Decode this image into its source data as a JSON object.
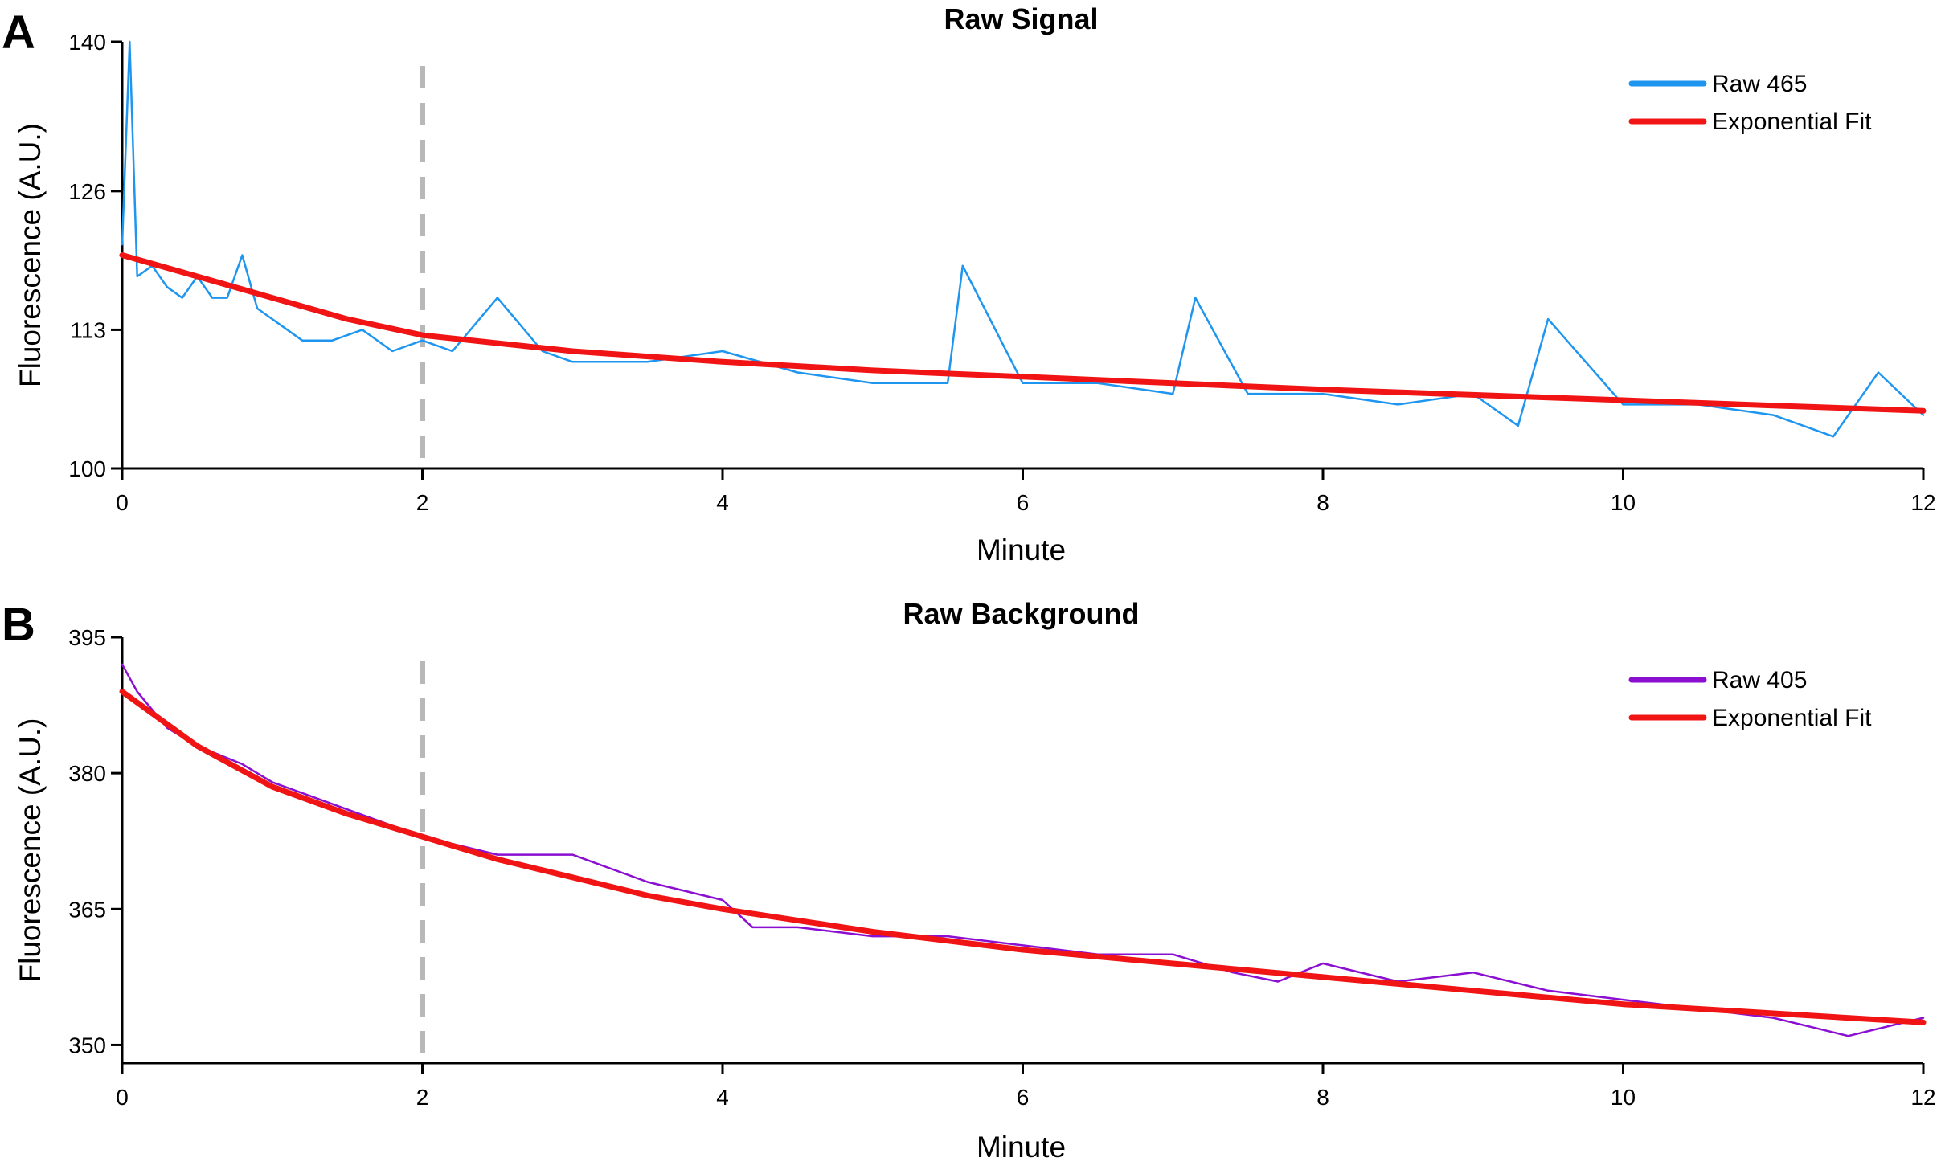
{
  "chart_data": [
    {
      "type": "line",
      "panel": "A",
      "title": "Raw Signal",
      "xlabel": "Minute",
      "ylabel": "Fluorescence (A.U.)",
      "xlim": [
        0,
        12
      ],
      "ylim": [
        100,
        140
      ],
      "xticks": [
        "0",
        "2",
        "4",
        "6",
        "8",
        "10",
        "12"
      ],
      "yticks": [
        "100",
        "113",
        "126",
        "140"
      ],
      "marker_x": 2,
      "legend_position": "top-right",
      "series": [
        {
          "name": "Raw 465",
          "color": "#1e96f0",
          "x": [
            0,
            0.05,
            0.1,
            0.2,
            0.3,
            0.4,
            0.5,
            0.6,
            0.7,
            0.8,
            0.9,
            1.0,
            1.2,
            1.4,
            1.6,
            1.8,
            2.0,
            2.2,
            2.5,
            2.8,
            3.0,
            3.5,
            4.0,
            4.5,
            5.0,
            5.5,
            5.6,
            6.0,
            6.5,
            7.0,
            7.15,
            7.5,
            8.0,
            8.5,
            9.0,
            9.3,
            9.5,
            10.0,
            10.5,
            11.0,
            11.4,
            11.7,
            12.0
          ],
          "y": [
            121,
            140,
            118,
            119,
            117,
            116,
            118,
            116,
            116,
            120,
            115,
            114,
            112,
            112,
            113,
            111,
            112,
            111,
            116,
            111,
            110,
            110,
            111,
            109,
            108,
            108,
            119,
            108,
            108,
            107,
            116,
            107,
            107,
            106,
            107,
            104,
            114,
            106,
            106,
            105,
            103,
            109,
            105
          ]
        },
        {
          "name": "Exponential Fit",
          "color": "#f01414",
          "x": [
            0,
            0.5,
            1,
            1.5,
            2,
            3,
            4,
            5,
            6,
            7,
            8,
            9,
            10,
            11,
            12
          ],
          "y": [
            120,
            118,
            116,
            114,
            112.5,
            111,
            110,
            109.2,
            108.6,
            108,
            107.4,
            106.9,
            106.4,
            105.9,
            105.4
          ]
        }
      ]
    },
    {
      "type": "line",
      "panel": "B",
      "title": "Raw Background",
      "xlabel": "Minute",
      "ylabel": "Fluorescence (A.U.)",
      "xlim": [
        0,
        12
      ],
      "ylim": [
        348,
        395
      ],
      "xticks": [
        "0",
        "2",
        "4",
        "6",
        "8",
        "10",
        "12"
      ],
      "yticks": [
        "350",
        "365",
        "380",
        "395"
      ],
      "marker_x": 2,
      "legend_position": "top-right",
      "series": [
        {
          "name": "Raw 405",
          "color": "#8a0fd0",
          "x": [
            0,
            0.1,
            0.3,
            0.5,
            0.8,
            1.0,
            1.5,
            2.0,
            2.5,
            3.0,
            3.5,
            4.0,
            4.2,
            4.5,
            5.0,
            5.5,
            6.0,
            6.5,
            7.0,
            7.4,
            7.7,
            8.0,
            8.5,
            9.0,
            9.5,
            10.0,
            10.5,
            11.0,
            11.5,
            12.0
          ],
          "y": [
            392,
            389,
            385,
            383,
            381,
            379,
            376,
            373,
            371,
            371,
            368,
            366,
            363,
            363,
            362,
            362,
            361,
            360,
            360,
            358,
            357,
            359,
            357,
            358,
            356,
            355,
            354,
            353,
            351,
            353
          ]
        },
        {
          "name": "Exponential Fit",
          "color": "#f01414",
          "x": [
            0,
            0.5,
            1,
            1.5,
            2,
            2.5,
            3,
            3.5,
            4,
            5,
            6,
            7,
            8,
            9,
            10,
            11,
            12
          ],
          "y": [
            389,
            383,
            378.5,
            375.5,
            373,
            370.5,
            368.5,
            366.5,
            365,
            362.5,
            360.5,
            359,
            357.5,
            356,
            354.5,
            353.5,
            352.5
          ]
        }
      ]
    }
  ]
}
